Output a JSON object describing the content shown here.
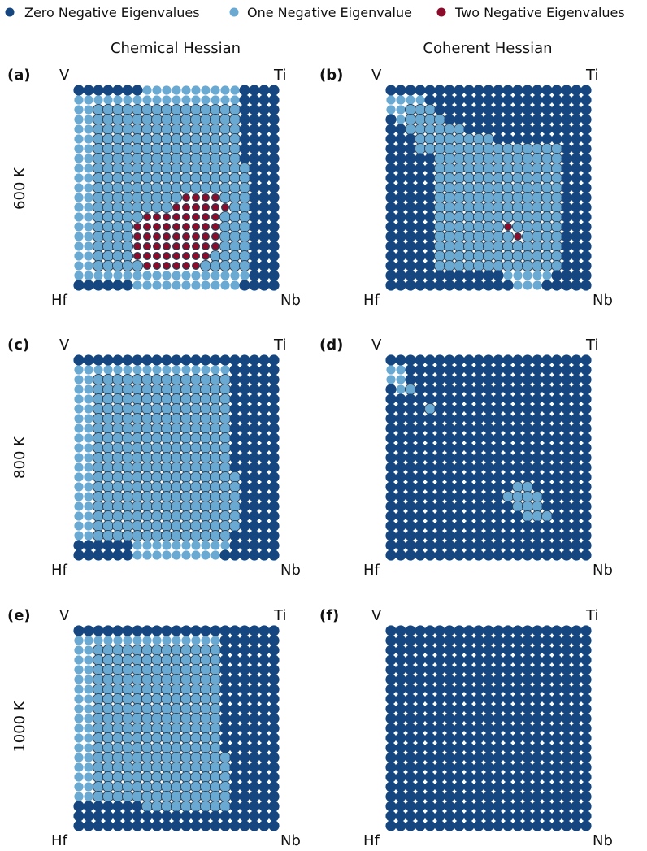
{
  "colors": {
    "zero": "#154680",
    "one": "#6aaad2",
    "two": "#8a0c2a",
    "outline": "#222222"
  },
  "legend": {
    "entries": [
      {
        "key": "zero",
        "label": "Zero Negative Eigenvalues"
      },
      {
        "key": "one",
        "label": "One Negative Eigenvalue"
      },
      {
        "key": "two",
        "label": "Two Negative Eigenvalues"
      }
    ]
  },
  "columns": [
    "Chemical Hessian",
    "Coherent Hessian"
  ],
  "rows": [
    "600 K",
    "800 K",
    "1000 K"
  ],
  "corner_labels": {
    "top_left": "V",
    "top_right": "Ti",
    "bottom_left": "Hf",
    "bottom_right": "Nb"
  },
  "chart_data": {
    "type": "scatter",
    "grid_size": 21,
    "encoding": "Each grid is 21 rows (top to bottom) by 21 columns (left to right). 0 = zero negative eigenvalues, 1 = one, 2 = two.",
    "panels": [
      {
        "id": "a",
        "label": "(a)",
        "column": "Chemical Hessian",
        "row": "600 K",
        "grid": [
          "000000011111111110000",
          "111111111111111110000",
          "111111111111111110000",
          "111111111111111110000",
          "111111111111111110000",
          "111111111111111110000",
          "111111111111111110000",
          "111111111111111110000",
          "111111111111111111000",
          "111111111111111111000",
          "111111111111111111000",
          "111111111112222111000",
          "111111111122222211000",
          "111111122222222111000",
          "111111222222222111000",
          "111111222222222111000",
          "111111222222222111000",
          "111111222222221111000",
          "111111122222211111000",
          "111111111111111111000",
          "000000111111111110000"
        ]
      },
      {
        "id": "b",
        "label": "(b)",
        "column": "Coherent Hessian",
        "row": "600 K",
        "grid": [
          "000000000000000000000",
          "111100000000000000000",
          "111110000000000000000",
          "011111000000000000000",
          "001111110000000000000",
          "000111111110000000000",
          "000111111111111111000",
          "000001111111111111000",
          "000001111111111111000",
          "000001111111111111000",
          "000001111111111111000",
          "000001111111111111000",
          "000001111111111111000",
          "000001111111111111000",
          "000001111111211111000",
          "000001111111121111000",
          "000001111111111111000",
          "000001111111111111000",
          "000001111111111111000",
          "000000000000111110000",
          "000000000000011100000"
        ]
      },
      {
        "id": "c",
        "label": "(c)",
        "column": "Chemical Hessian",
        "row": "800 K",
        "grid": [
          "000000000000000000000",
          "111111111111111100000",
          "111111111111111100000",
          "111111111111111100000",
          "111111111111111100000",
          "111111111111111100000",
          "111111111111111100000",
          "111111111111111100000",
          "111111111111111100000",
          "111111111111111100000",
          "111111111111111100000",
          "111111111111111100000",
          "111111111111111110000",
          "111111111111111110000",
          "111111111111111110000",
          "111111111111111110000",
          "111111111111111110000",
          "111111111111111110000",
          "111111111111111100000",
          "000000111111111100000",
          "000000111111111000000"
        ]
      },
      {
        "id": "d",
        "label": "(d)",
        "column": "Coherent Hessian",
        "row": "800 K",
        "grid": [
          "000000000000000000000",
          "110000000000000000000",
          "110000000000000000000",
          "011000000000000000000",
          "000000000000000000000",
          "000010000000000000000",
          "000000000000000000000",
          "000000000000000000000",
          "000000000000000000000",
          "000000000000000000000",
          "000000000000000000000",
          "000000000000000000000",
          "000000000000000000000",
          "000000000000011000000",
          "000000000000111100000",
          "000000000000011100000",
          "000000000000001110000",
          "000000000000000000000",
          "000000000000000000000",
          "000000000000000000000",
          "000000000000000000000"
        ]
      },
      {
        "id": "e",
        "label": "(e)",
        "column": "Chemical Hessian",
        "row": "1000 K",
        "grid": [
          "000000000000000000000",
          "111111111111111000000",
          "111111111111111000000",
          "111111111111111000000",
          "111111111111111000000",
          "111111111111111000000",
          "111111111111111000000",
          "111111111111111000000",
          "111111111111111000000",
          "111111111111111000000",
          "111111111111111000000",
          "111111111111111000000",
          "111111111111111000000",
          "111111111111111100000",
          "111111111111111100000",
          "111111111111111100000",
          "111111111111111100000",
          "111111111111111100000",
          "000000011111111100000",
          "000000000000000000000",
          "000000000000000000000"
        ]
      },
      {
        "id": "f",
        "label": "(f)",
        "column": "Coherent Hessian",
        "row": "1000 K",
        "grid": [
          "000000000000000000000",
          "000000000000000000000",
          "000000000000000000000",
          "000000000000000000000",
          "000000000000000000000",
          "000000000000000000000",
          "000000000000000000000",
          "000000000000000000000",
          "000000000000000000000",
          "000000000000000000000",
          "000000000000000000000",
          "000000000000000000000",
          "000000000000000000000",
          "000000000000000000000",
          "000000000000000000000",
          "000000000000000000000",
          "000000000000000000000",
          "000000000000000000000",
          "000000000000000000000",
          "000000000000000000000",
          "000000000000000000000"
        ]
      }
    ]
  }
}
